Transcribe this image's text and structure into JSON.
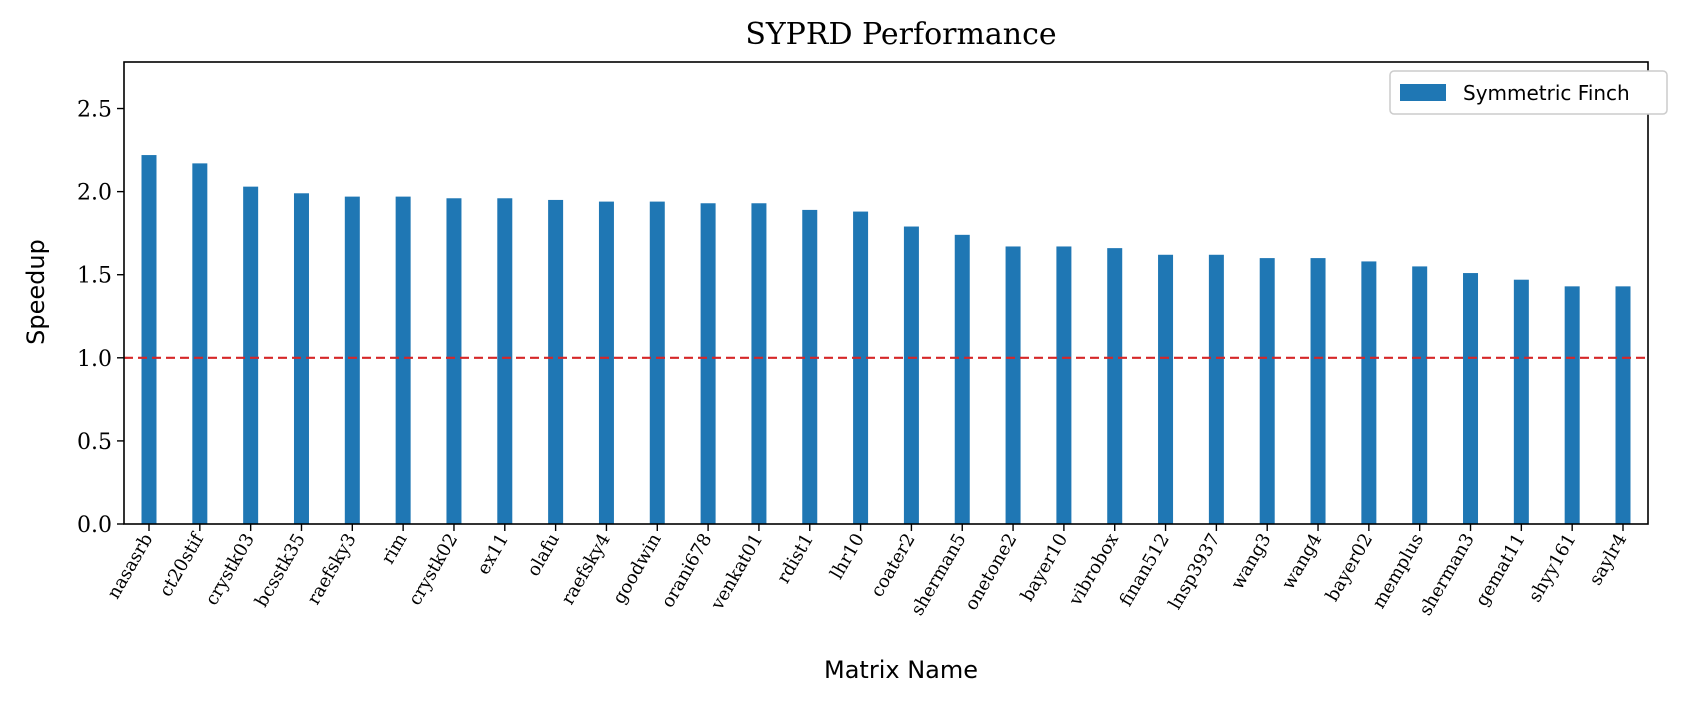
{
  "chart_data": {
    "type": "bar",
    "title": "SYPRD Performance",
    "xlabel": "Matrix Name",
    "ylabel": "Speedup",
    "ylim": [
      0,
      2.78
    ],
    "yticks": [
      "0.0",
      "0.5",
      "1.0",
      "1.5",
      "2.0",
      "2.5"
    ],
    "reference_line": {
      "y": 1.0,
      "style": "dashed",
      "color": "#d62728"
    },
    "legend_position": "top-right",
    "bar_color": "#1f77b4",
    "series": [
      {
        "name": "Symmetric Finch",
        "values": [
          2.22,
          2.17,
          2.03,
          1.99,
          1.97,
          1.97,
          1.96,
          1.96,
          1.95,
          1.94,
          1.94,
          1.93,
          1.93,
          1.89,
          1.88,
          1.79,
          1.74,
          1.67,
          1.67,
          1.66,
          1.62,
          1.62,
          1.6,
          1.6,
          1.58,
          1.55,
          1.51,
          1.47,
          1.43,
          1.43
        ]
      }
    ],
    "categories": [
      "nasasrb",
      "ct20stif",
      "crystk03",
      "bcsstk35",
      "raefsky3",
      "rim",
      "crystk02",
      "ex11",
      "olafu",
      "raefsky4",
      "goodwin",
      "orani678",
      "venkat01",
      "rdist1",
      "lhr10",
      "coater2",
      "sherman5",
      "onetone2",
      "bayer10",
      "vibrobox",
      "finan512",
      "lnsp3937",
      "wang3",
      "wang4",
      "bayer02",
      "memplus",
      "sherman3",
      "gemat11",
      "shyy161",
      "saylr4"
    ]
  }
}
